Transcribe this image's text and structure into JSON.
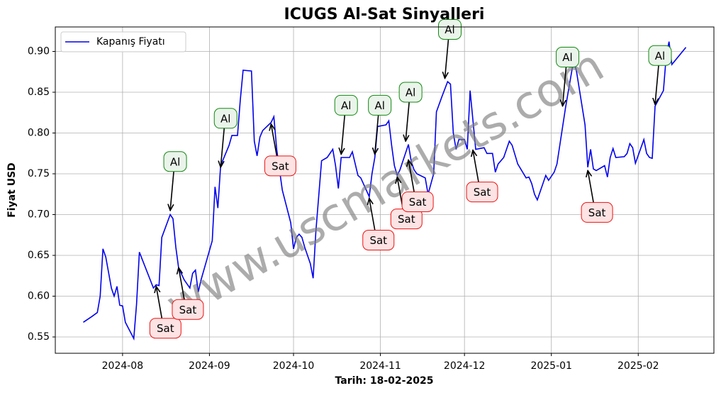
{
  "chart_data": {
    "type": "line",
    "title": "ICUGS Al-Sat Sinyalleri",
    "xlabel": "Tarih: 18-02-2025",
    "ylabel": "Fiyat USD",
    "watermark": "www.uscmarkets.com",
    "legend": "upper left",
    "grid": true,
    "xlim": [
      "2024-07-08",
      "2025-02-28"
    ],
    "ylim": [
      0.53,
      0.93
    ],
    "xticks": [
      "2024-08",
      "2024-09",
      "2024-10",
      "2024-11",
      "2024-12",
      "2025-01",
      "2025-02"
    ],
    "yticks": [
      0.55,
      {
        "value": 0.6,
        "label": "0.60"
      },
      0.65,
      {
        "value": 0.7,
        "label": "0.70"
      },
      0.75,
      {
        "value": 0.8,
        "label": "0.80"
      },
      0.85,
      {
        "value": 0.9,
        "label": "0.90"
      }
    ],
    "x": [
      "2024-07-18",
      "2024-07-21",
      "2024-07-23",
      "2024-07-24",
      "2024-07-25",
      "2024-07-26",
      "2024-07-28",
      "2024-07-29",
      "2024-07-30",
      "2024-07-31",
      "2024-08-01",
      "2024-08-02",
      "2024-08-05",
      "2024-08-06",
      "2024-08-07",
      "2024-08-12",
      "2024-08-13",
      "2024-08-14",
      "2024-08-15",
      "2024-08-18",
      "2024-08-19",
      "2024-08-20",
      "2024-08-21",
      "2024-08-23",
      "2024-08-25",
      "2024-08-26",
      "2024-08-27",
      "2024-08-28",
      "2024-08-29",
      "2024-09-02",
      "2024-09-03",
      "2024-09-04",
      "2024-09-05",
      "2024-09-08",
      "2024-09-09",
      "2024-09-11",
      "2024-09-12",
      "2024-09-13",
      "2024-09-16",
      "2024-09-17",
      "2024-09-18",
      "2024-09-19",
      "2024-09-20",
      "2024-09-23",
      "2024-09-24",
      "2024-09-25",
      "2024-09-27",
      "2024-09-30",
      "2024-10-01",
      "2024-10-02",
      "2024-10-03",
      "2024-10-04",
      "2024-10-05",
      "2024-10-07",
      "2024-10-08",
      "2024-10-09",
      "2024-10-11",
      "2024-10-13",
      "2024-10-15",
      "2024-10-16",
      "2024-10-17",
      "2024-10-18",
      "2024-10-21",
      "2024-10-22",
      "2024-10-24",
      "2024-10-25",
      "2024-10-28",
      "2024-10-29",
      "2024-10-30",
      "2024-10-31",
      "2024-11-03",
      "2024-11-04",
      "2024-11-05",
      "2024-11-06",
      "2024-11-07",
      "2024-11-08",
      "2024-11-11",
      "2024-11-12",
      "2024-11-13",
      "2024-11-14",
      "2024-11-17",
      "2024-11-18",
      "2024-11-20",
      "2024-11-21",
      "2024-11-23",
      "2024-11-25",
      "2024-11-26",
      "2024-11-27",
      "2024-11-28",
      "2024-11-29",
      "2024-12-01",
      "2024-12-02",
      "2024-12-03",
      "2024-12-05",
      "2024-12-08",
      "2024-12-09",
      "2024-12-11",
      "2024-12-12",
      "2024-12-13",
      "2024-12-15",
      "2024-12-17",
      "2024-12-18",
      "2024-12-20",
      "2024-12-23",
      "2024-12-24",
      "2024-12-25",
      "2024-12-26",
      "2024-12-27",
      "2024-12-30",
      "2024-12-31",
      "2025-01-02",
      "2025-01-03",
      "2025-01-06",
      "2025-01-07",
      "2025-01-09",
      "2025-01-10",
      "2025-01-13",
      "2025-01-14",
      "2025-01-15",
      "2025-01-16",
      "2025-01-17",
      "2025-01-20",
      "2025-01-21",
      "2025-01-22",
      "2025-01-23",
      "2025-01-24",
      "2025-01-27",
      "2025-01-28",
      "2025-01-29",
      "2025-01-30",
      "2025-01-31",
      "2025-02-03",
      "2025-02-04",
      "2025-02-05",
      "2025-02-06",
      "2025-02-07",
      "2025-02-10",
      "2025-02-11",
      "2025-02-12",
      "2025-02-13",
      "2025-02-18"
    ],
    "series": [
      {
        "name": "Kapanış Fiyatı",
        "color": "#0000ee",
        "values": [
          0.568,
          0.575,
          0.58,
          0.6,
          0.658,
          0.648,
          0.61,
          0.6,
          0.612,
          0.589,
          0.588,
          0.568,
          0.548,
          0.59,
          0.654,
          0.61,
          0.614,
          0.613,
          0.672,
          0.7,
          0.695,
          0.66,
          0.635,
          0.62,
          0.61,
          0.628,
          0.632,
          0.605,
          0.62,
          0.668,
          0.734,
          0.708,
          0.76,
          0.785,
          0.797,
          0.797,
          0.84,
          0.877,
          0.876,
          0.79,
          0.772,
          0.795,
          0.803,
          0.813,
          0.82,
          0.78,
          0.73,
          0.69,
          0.658,
          0.672,
          0.676,
          0.672,
          0.66,
          0.64,
          0.622,
          0.68,
          0.766,
          0.77,
          0.78,
          0.76,
          0.732,
          0.77,
          0.77,
          0.777,
          0.748,
          0.745,
          0.722,
          0.75,
          0.77,
          0.808,
          0.81,
          0.815,
          0.785,
          0.76,
          0.748,
          0.755,
          0.786,
          0.765,
          0.755,
          0.75,
          0.745,
          0.725,
          0.75,
          0.826,
          0.845,
          0.863,
          0.86,
          0.8,
          0.78,
          0.792,
          0.792,
          0.78,
          0.852,
          0.78,
          0.782,
          0.775,
          0.775,
          0.752,
          0.762,
          0.77,
          0.79,
          0.785,
          0.762,
          0.745,
          0.746,
          0.738,
          0.725,
          0.718,
          0.748,
          0.742,
          0.752,
          0.762,
          0.83,
          0.85,
          0.89,
          0.875,
          0.81,
          0.758,
          0.78,
          0.756,
          0.754,
          0.76,
          0.746,
          0.77,
          0.781,
          0.77,
          0.771,
          0.775,
          0.787,
          0.782,
          0.763,
          0.792,
          0.775,
          0.77,
          0.769,
          0.833,
          0.852,
          0.895,
          0.912,
          0.884,
          0.905
        ]
      }
    ],
    "annotations": [
      {
        "text": "Al",
        "x": "2024-08-18",
        "y": 0.705
      },
      {
        "text": "Sat",
        "x": "2024-08-13",
        "y": 0.612
      },
      {
        "text": "Sat",
        "x": "2024-08-21",
        "y": 0.635
      },
      {
        "text": "Al",
        "x": "2024-09-05",
        "y": 0.758
      },
      {
        "text": "Sat",
        "x": "2024-09-23",
        "y": 0.811
      },
      {
        "text": "Al",
        "x": "2024-10-18",
        "y": 0.774
      },
      {
        "text": "Al",
        "x": "2024-10-30",
        "y": 0.774
      },
      {
        "text": "Sat",
        "x": "2024-10-28",
        "y": 0.72
      },
      {
        "text": "Sat",
        "x": "2024-11-07",
        "y": 0.746
      },
      {
        "text": "Al",
        "x": "2024-11-10",
        "y": 0.79
      },
      {
        "text": "Sat",
        "x": "2024-11-11",
        "y": 0.767
      },
      {
        "text": "Al",
        "x": "2024-11-24",
        "y": 0.867
      },
      {
        "text": "Sat",
        "x": "2024-12-04",
        "y": 0.779
      },
      {
        "text": "Al",
        "x": "2025-01-05",
        "y": 0.833
      },
      {
        "text": "Sat",
        "x": "2025-01-14",
        "y": 0.754
      },
      {
        "text": "Al",
        "x": "2025-02-07",
        "y": 0.835
      }
    ]
  }
}
